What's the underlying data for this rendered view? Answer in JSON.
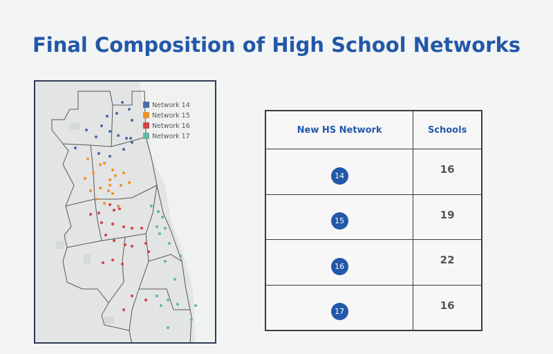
{
  "title": "Final Composition of High School Networks",
  "map": {
    "legend": [
      {
        "label": "Network 14",
        "color": "#4a6fa5"
      },
      {
        "label": "Network 15",
        "color": "#f0922b"
      },
      {
        "label": "Network 16",
        "color": "#d2474a"
      },
      {
        "label": "Network 17",
        "color": "#65b7a8"
      }
    ]
  },
  "table": {
    "headers": [
      "New HS Network",
      "Schools"
    ],
    "rows": [
      {
        "network": "14",
        "schools": "16"
      },
      {
        "network": "15",
        "schools": "19"
      },
      {
        "network": "16",
        "schools": "22"
      },
      {
        "network": "17",
        "schools": "16"
      }
    ]
  }
}
